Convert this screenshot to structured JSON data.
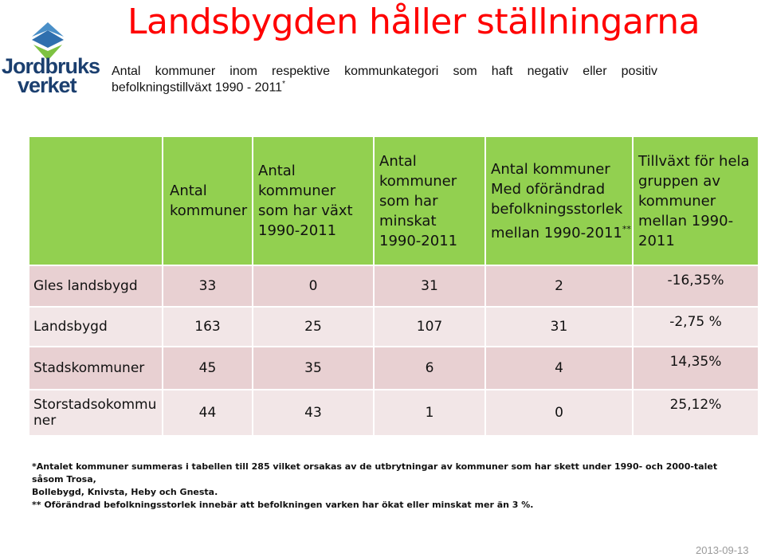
{
  "title": "Landsbygden håller ställningarna",
  "logo": {
    "line1": "Jordbruks",
    "line2": "verket"
  },
  "subtitle": {
    "line1": "Antal kommuner inom respektive kommunkategori som haft negativ eller positiv",
    "line2": "befolkningstillväxt 1990 - 2011",
    "mark": "*"
  },
  "table": {
    "headers": [
      {
        "lines": [
          "Antal",
          "kommuner"
        ]
      },
      {
        "lines": [
          "Antal",
          "kommuner",
          "som har växt",
          "1990-2011"
        ]
      },
      {
        "lines": [
          "Antal",
          "kommuner",
          "som har",
          "minskat",
          "1990-2011"
        ]
      },
      {
        "lines": [
          "Antal kommuner",
          "Med oförändrad",
          "befolkningsstorlek",
          "mellan 1990-2011"
        ],
        "mark": "**"
      },
      {
        "lines": [
          "Tillväxt för hela",
          "gruppen av",
          "kommuner",
          "mellan 1990-",
          "2011"
        ]
      }
    ],
    "rows": [
      {
        "label": "Gles landsbygd",
        "total": "33",
        "grown": "0",
        "shrunk": "31",
        "unchanged": "2",
        "growth": "-16,35%"
      },
      {
        "label": "Landsbygd",
        "total": "163",
        "grown": "25",
        "shrunk": "107",
        "unchanged": "31",
        "growth": "-2,75 %"
      },
      {
        "label": "Stadskommuner",
        "total": "45",
        "grown": "35",
        "shrunk": "6",
        "unchanged": "4",
        "growth": "14,35%"
      },
      {
        "label": "Storstadsokommu ner",
        "label_lines": [
          "Storstadsokommu",
          "ner"
        ],
        "total": "44",
        "grown": "43",
        "shrunk": "1",
        "unchanged": "0",
        "growth": "25,12%"
      }
    ]
  },
  "footnotes": {
    "f1a": "*Antalet kommuner summeras i tabellen till 285 vilket orsakas av de utbrytningar av kommuner som har skett under 1990- och 2000-talet såsom Trosa,",
    "f1b": "Bollebygd, Knivsta, Heby och Gnesta.",
    "f2": "** Oförändrad befolkningsstorlek innebär att befolkningen varken har ökat eller minskat mer än 3 %."
  },
  "date": "2013-09-13",
  "colors": {
    "title": "#ff0000",
    "header_bg": "#92d050",
    "row_dark": "#e8d0d2",
    "row_light": "#f2e6e7",
    "logo_blue": "#1b3f6f"
  }
}
